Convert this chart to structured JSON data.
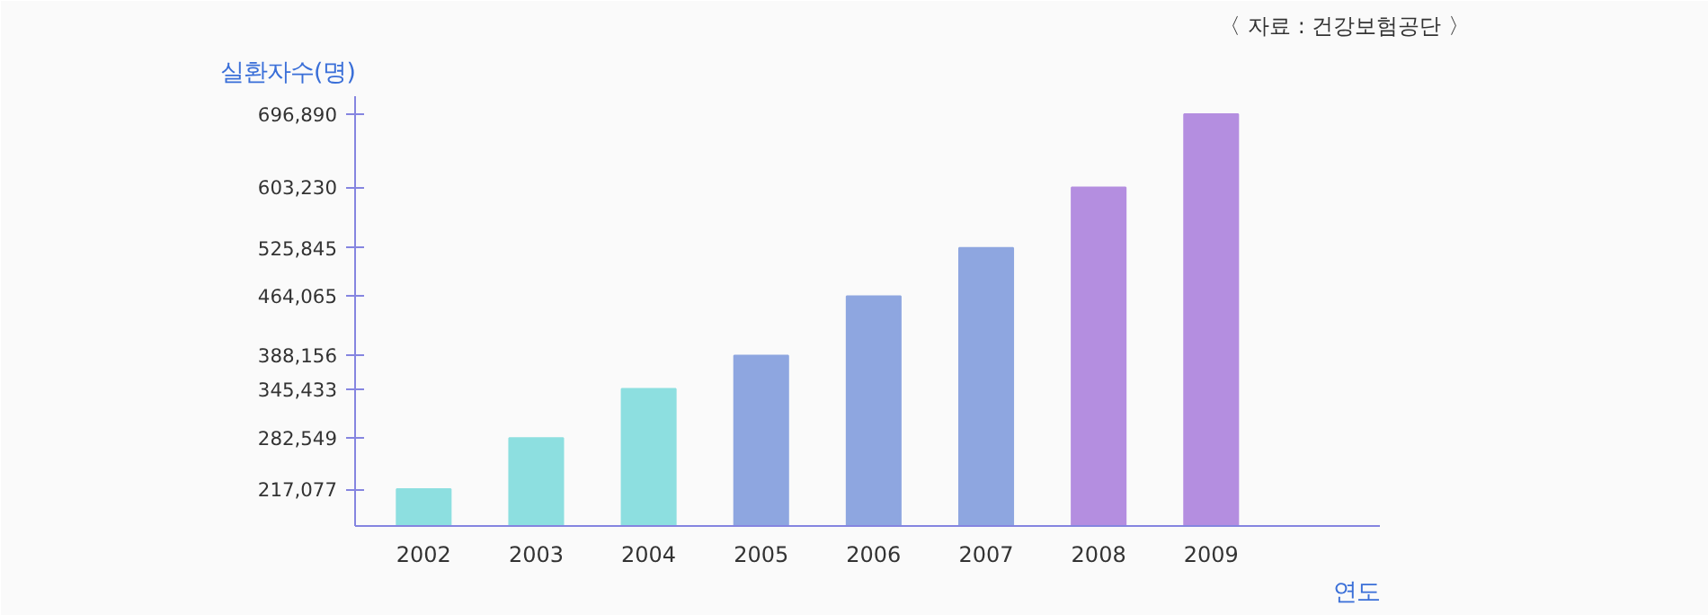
{
  "chart_data": {
    "type": "bar",
    "ylabel": "실환자수(명)",
    "xlabel": "연도",
    "annotations": [
      "〈 자료 : 건강보험공단 〉"
    ],
    "categories": [
      "2002",
      "2003",
      "2004",
      "2005",
      "2006",
      "2007",
      "2008",
      "2009"
    ],
    "values": [
      217077,
      282549,
      345433,
      388156,
      464065,
      525845,
      603230,
      696890
    ],
    "colors": [
      "#8ddfe0",
      "#8ddfe0",
      "#8ddfe0",
      "#8ea6e0",
      "#8ea6e0",
      "#8ea6e0",
      "#b48ee0",
      "#b48ee0"
    ],
    "ylim": [
      170000,
      720000
    ],
    "yticks": [
      {
        "value": 217077,
        "label": "217,077"
      },
      {
        "value": 282549,
        "label": "282,549"
      },
      {
        "value": 345433,
        "label": "345,433"
      },
      {
        "value": 388156,
        "label": "388,156"
      },
      {
        "value": 464065,
        "label": "464,065"
      },
      {
        "value": 525845,
        "label": "525,845"
      },
      {
        "value": 603230,
        "label": "603,230"
      },
      {
        "value": 696890,
        "label": "696,890"
      }
    ],
    "grid": false
  }
}
